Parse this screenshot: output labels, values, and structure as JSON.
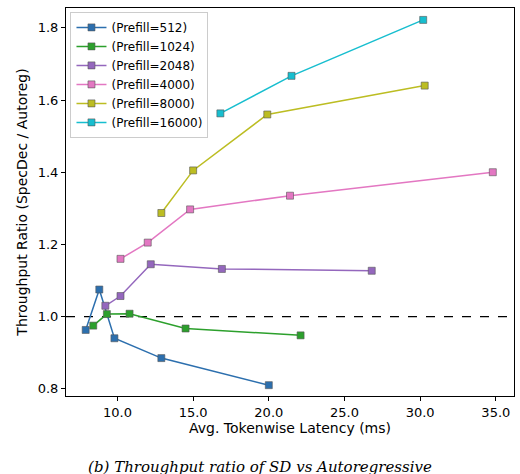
{
  "chart_data": {
    "type": "line",
    "title": "(b) Throughput ratio of SD vs Autoregressive",
    "x_label": "Avg. Tokenwise Latency (ms)",
    "y_label": "Throughput Ratio (SpecDec / Autoreg)",
    "xlim": [
      6.6,
      36.2
    ],
    "ylim": [
      0.78,
      1.855
    ],
    "xticks": [
      {
        "value": 10,
        "label": "10.0"
      },
      {
        "value": 15,
        "label": "15.0"
      },
      {
        "value": 20,
        "label": "20.0"
      },
      {
        "value": 25,
        "label": "25.0"
      },
      {
        "value": 30,
        "label": "30.0"
      },
      {
        "value": 35,
        "label": "35.0"
      }
    ],
    "yticks": [
      {
        "value": 0.8,
        "label": "0.8"
      },
      {
        "value": 1.0,
        "label": "1.0"
      },
      {
        "value": 1.2,
        "label": "1.2"
      },
      {
        "value": 1.4,
        "label": "1.4"
      },
      {
        "value": 1.6,
        "label": "1.6"
      },
      {
        "value": 1.8,
        "label": "1.8"
      }
    ],
    "hline": 1.0,
    "grid": false,
    "legend": "upper left",
    "marker": "square",
    "series": [
      {
        "name": "(Prefill=512)",
        "color": "#2c6fae",
        "x": [
          7.9,
          8.8,
          9.8,
          12.9,
          20.0
        ],
        "values": [
          0.963,
          1.075,
          0.94,
          0.885,
          0.81
        ]
      },
      {
        "name": "(Prefill=1024)",
        "color": "#2ca02c",
        "x": [
          8.4,
          9.3,
          10.8,
          14.5,
          22.1
        ],
        "values": [
          0.975,
          1.007,
          1.008,
          0.967,
          0.948
        ]
      },
      {
        "name": "(Prefill=2048)",
        "color": "#9467bd",
        "x": [
          9.2,
          10.2,
          12.2,
          16.9,
          26.8
        ],
        "values": [
          1.03,
          1.057,
          1.145,
          1.132,
          1.127
        ]
      },
      {
        "name": "(Prefill=4000)",
        "color": "#e377c2",
        "x": [
          10.2,
          12.0,
          14.8,
          21.4,
          34.8
        ],
        "values": [
          1.16,
          1.205,
          1.297,
          1.335,
          1.4
        ]
      },
      {
        "name": "(Prefill=8000)",
        "color": "#bcbd22",
        "x": [
          12.9,
          15.0,
          19.9,
          30.3
        ],
        "values": [
          1.287,
          1.405,
          1.56,
          1.64
        ]
      },
      {
        "name": "(Prefill=16000)",
        "color": "#17becf",
        "x": [
          16.8,
          21.5,
          30.2
        ],
        "values": [
          1.563,
          1.667,
          1.822
        ]
      }
    ]
  }
}
